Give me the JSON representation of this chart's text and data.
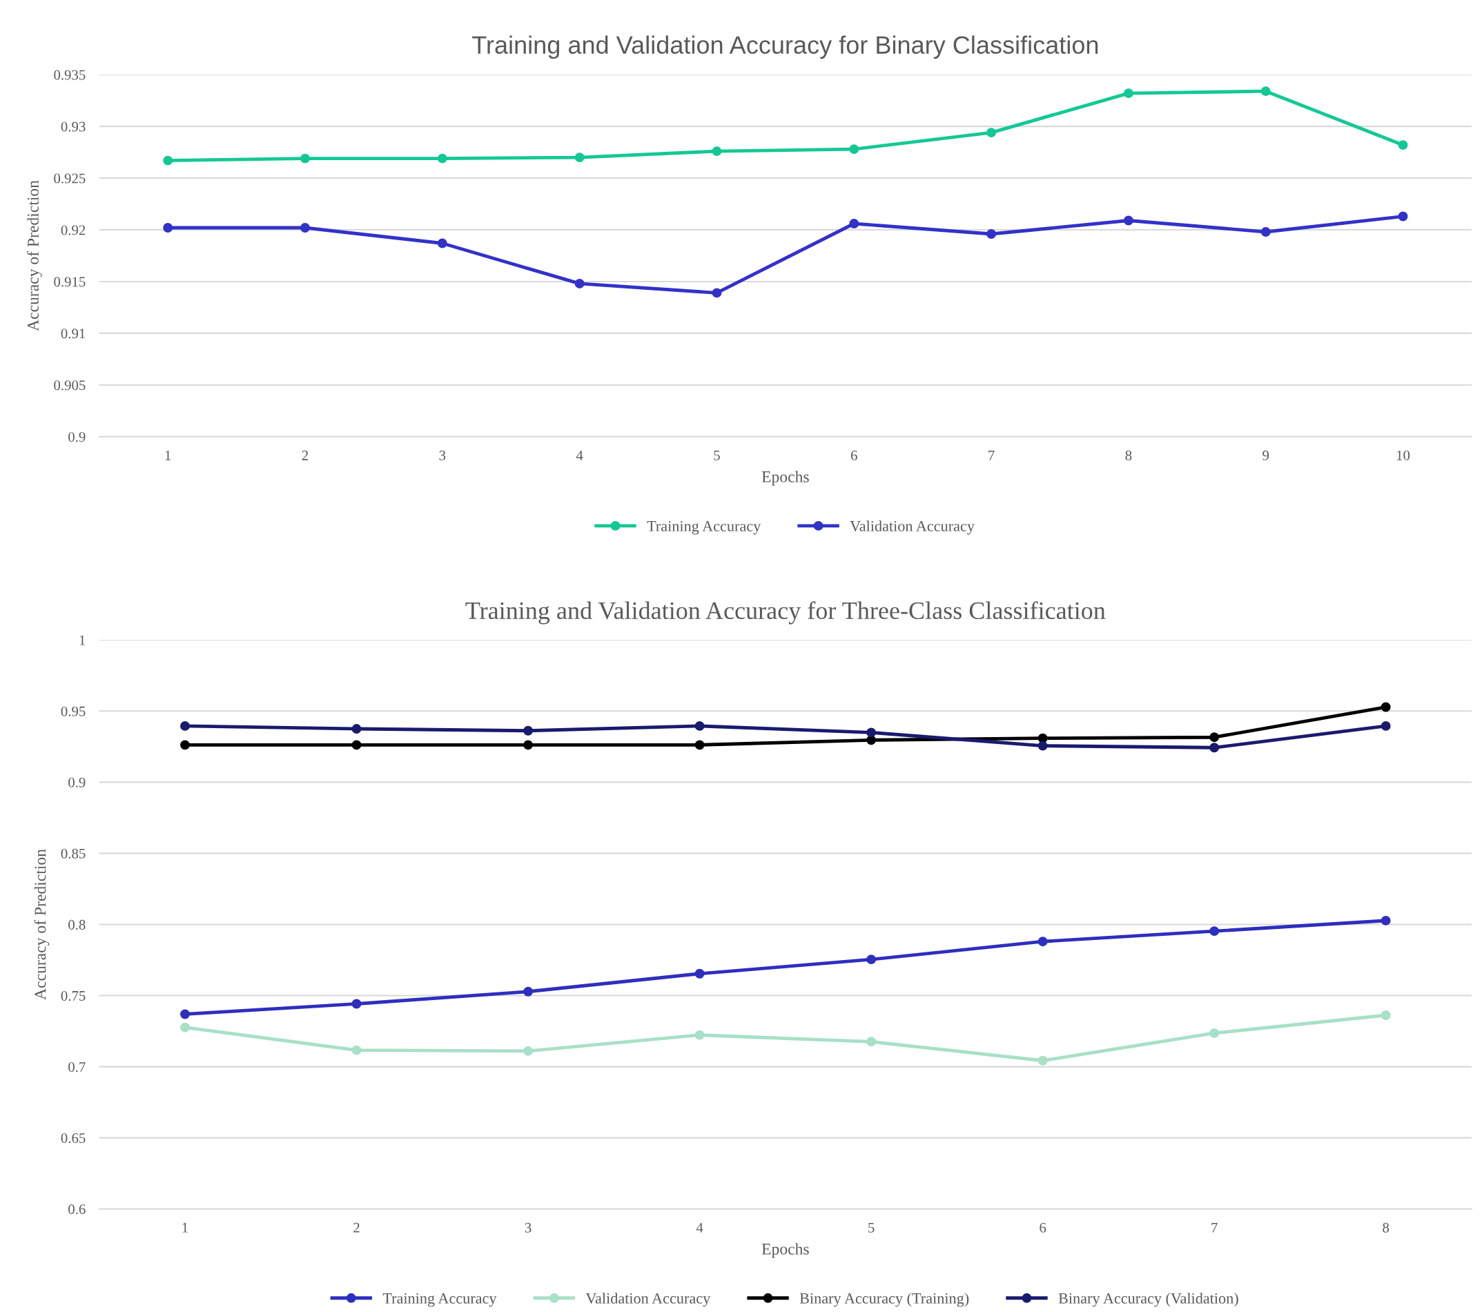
{
  "chart_data": [
    {
      "type": "line",
      "title": "Training and Validation Accuracy for Binary Classification",
      "xlabel": "Epochs",
      "ylabel": "Accuracy of Prediction",
      "categories": [
        "1",
        "2",
        "3",
        "4",
        "5",
        "6",
        "7",
        "8",
        "9",
        "10"
      ],
      "series": [
        {
          "name": "Training Accuracy",
          "color": "#14c896",
          "values": [
            0.9267,
            0.9269,
            0.9269,
            0.927,
            0.9276,
            0.9278,
            0.9294,
            0.9332,
            0.9334,
            0.9282
          ]
        },
        {
          "name": "Validation Accuracy",
          "color": "#3232c8",
          "values": [
            0.9202,
            0.9202,
            0.9187,
            0.9148,
            0.9139,
            0.9206,
            0.9196,
            0.9209,
            0.9198,
            0.9213
          ]
        }
      ],
      "ylim": [
        0.9,
        0.935
      ],
      "yticks": [
        0.9,
        0.905,
        0.91,
        0.915,
        0.92,
        0.925,
        0.93,
        0.935
      ],
      "grid": "y",
      "legend": "bottom",
      "marker": "circle",
      "line_style": "solid"
    },
    {
      "type": "line",
      "title": "Training and Validation Accuracy for Three-Class Classification",
      "xlabel": "Epochs",
      "ylabel": "Accuracy of Prediction",
      "categories": [
        "1",
        "2",
        "3",
        "4",
        "5",
        "6",
        "7",
        "8"
      ],
      "series": [
        {
          "name": "Training Accuracy",
          "color": "#2e2ebf",
          "values": [
            0.7369,
            0.7442,
            0.7528,
            0.7654,
            0.7754,
            0.788,
            0.7953,
            0.8027
          ]
        },
        {
          "name": "Validation Accuracy",
          "color": "#a8e0c8",
          "values": [
            0.7276,
            0.7116,
            0.711,
            0.7223,
            0.7176,
            0.7043,
            0.7236,
            0.7362
          ]
        },
        {
          "name": "Binary Accuracy (Training)",
          "color": "#000000",
          "values": [
            0.9262,
            0.9262,
            0.9262,
            0.9262,
            0.9296,
            0.9309,
            0.9316,
            0.9528
          ]
        },
        {
          "name": "Binary Accuracy (Validation)",
          "color": "#1a1a6e",
          "values": [
            0.9395,
            0.9375,
            0.9362,
            0.9395,
            0.9349,
            0.9256,
            0.9243,
            0.9395
          ]
        }
      ],
      "ylim": [
        0.6,
        1
      ],
      "yticks": [
        0.6,
        0.65,
        0.7,
        0.75,
        0.8,
        0.85,
        0.9,
        0.95,
        1
      ],
      "grid": "y",
      "legend": "bottom",
      "marker": "circle",
      "line_style": "solid"
    }
  ]
}
